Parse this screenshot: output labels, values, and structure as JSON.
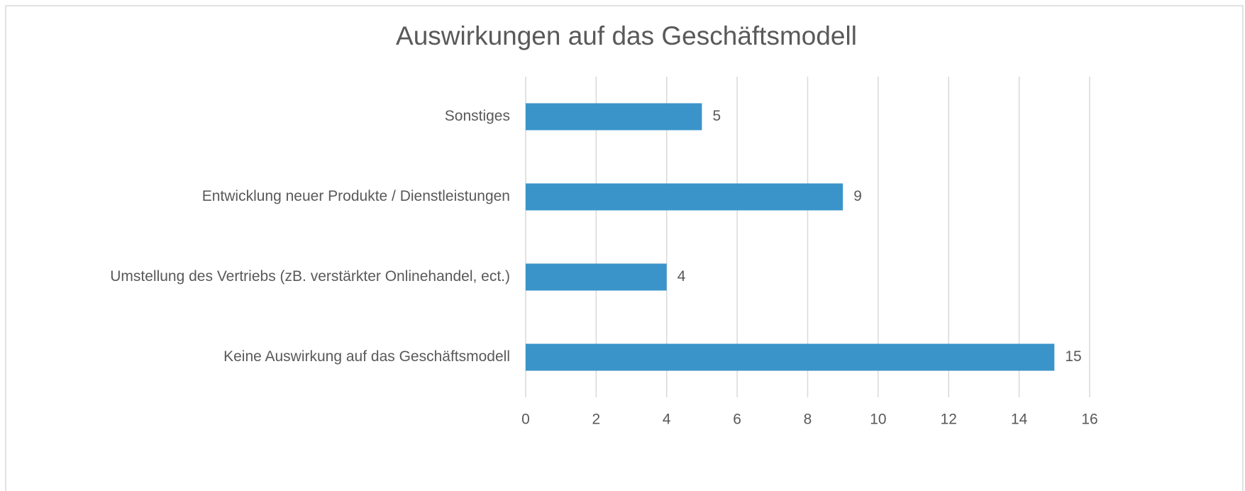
{
  "chart_data": {
    "type": "hbar",
    "title": "Auswirkungen auf das Geschäftsmodell",
    "categories": [
      "Sonstiges",
      "Entwicklung neuer Produkte / Dienstleistungen",
      "Umstellung des Vertriebs (zB. verstärkter Onlinehandel, ect.)",
      "Keine Auswirkung auf das Geschäftsmodell"
    ],
    "values": [
      5,
      9,
      4,
      15
    ],
    "color": "#3a94c9",
    "xlim": [
      0,
      16
    ],
    "xticks": [
      0,
      2,
      4,
      6,
      8,
      10,
      12,
      14,
      16
    ],
    "grid": true
  }
}
